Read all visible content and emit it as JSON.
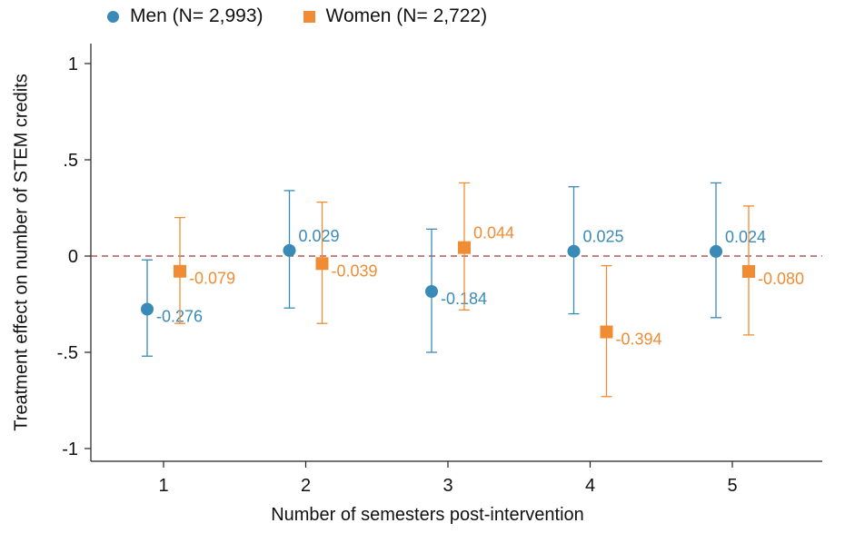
{
  "chart_data": {
    "type": "scatter",
    "x_categories": [
      "1",
      "2",
      "3",
      "4",
      "5"
    ],
    "xlabel": "Number of semesters post-intervention",
    "ylabel": "Treatment effect on number of STEM credits",
    "ylim": [
      -1,
      1
    ],
    "yticks": [
      1,
      0.5,
      0,
      -0.5,
      -1
    ],
    "ytick_labels": [
      "1",
      ".5",
      "0",
      "-.5",
      "-1"
    ],
    "reference_line": 0,
    "grid": false,
    "legend_position": "top",
    "series": [
      {
        "name": "Men (N= 2,993)",
        "marker": "circle",
        "color": "#3a8ab8",
        "points": [
          {
            "x": 1,
            "y": -0.276,
            "label": "-0.276",
            "ci": [
              -0.52,
              -0.02
            ]
          },
          {
            "x": 2,
            "y": 0.029,
            "label": "0.029",
            "ci": [
              -0.27,
              0.34
            ]
          },
          {
            "x": 3,
            "y": -0.184,
            "label": "-0.184",
            "ci": [
              -0.5,
              0.14
            ]
          },
          {
            "x": 4,
            "y": 0.025,
            "label": "0.025",
            "ci": [
              -0.3,
              0.36
            ]
          },
          {
            "x": 5,
            "y": 0.024,
            "label": "0.024",
            "ci": [
              -0.32,
              0.38
            ]
          }
        ]
      },
      {
        "name": "Women (N= 2,722)",
        "marker": "square",
        "color": "#f08c34",
        "points": [
          {
            "x": 1,
            "y": -0.079,
            "label": "-0.079",
            "ci": [
              -0.35,
              0.2
            ]
          },
          {
            "x": 2,
            "y": -0.039,
            "label": "-0.039",
            "ci": [
              -0.35,
              0.28
            ]
          },
          {
            "x": 3,
            "y": 0.044,
            "label": "0.044",
            "ci": [
              -0.28,
              0.38
            ]
          },
          {
            "x": 4,
            "y": -0.394,
            "label": "-0.394",
            "ci": [
              -0.73,
              -0.05
            ]
          },
          {
            "x": 5,
            "y": -0.08,
            "label": "-0.080",
            "ci": [
              -0.41,
              0.26
            ]
          }
        ]
      }
    ]
  }
}
